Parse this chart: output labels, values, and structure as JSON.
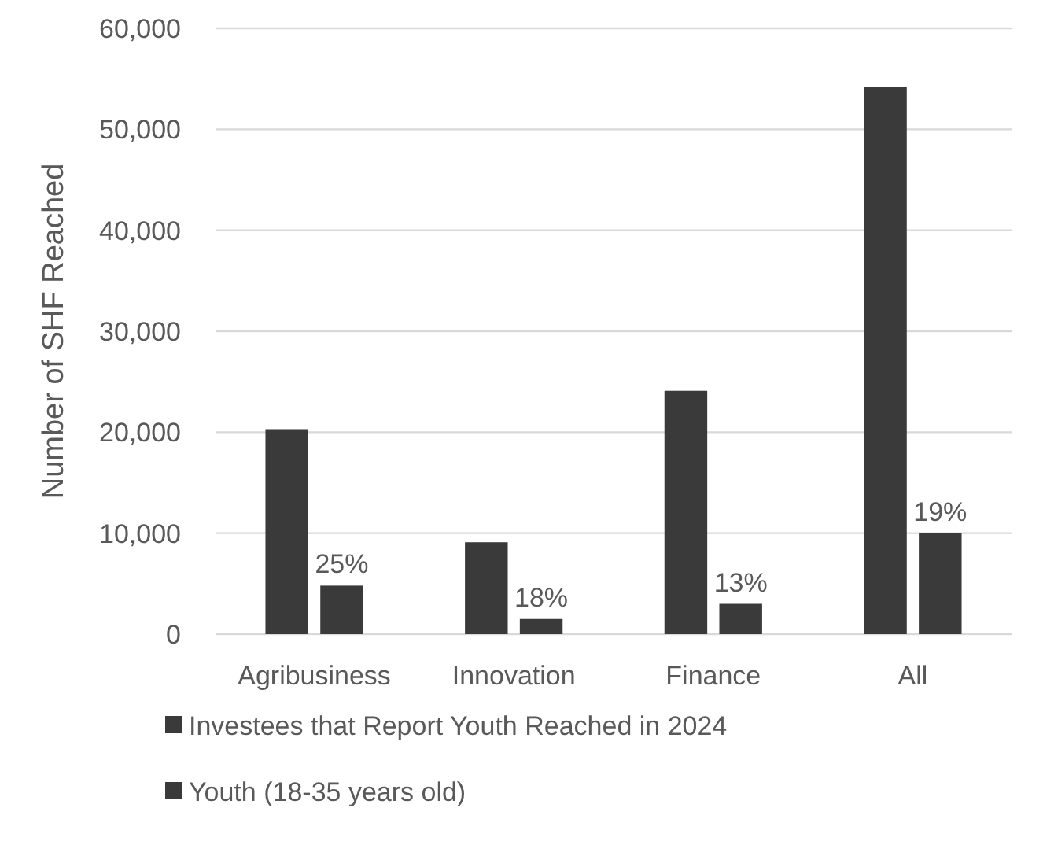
{
  "chart_data": {
    "type": "bar",
    "ylabel": "Number of SHF Reached",
    "categories": [
      "Agribusiness",
      "Innovation",
      "Finance",
      "All"
    ],
    "series": [
      {
        "name": "Investees that Report Youth Reached in 2024",
        "color": "#3a3a3a",
        "values": [
          20300,
          9100,
          24100,
          54200
        ]
      },
      {
        "name": "Youth (18-35 years old)",
        "color": "#3a3a3a",
        "values": [
          4800,
          1500,
          3000,
          10000
        ]
      }
    ],
    "annotations": [
      {
        "text": "25%",
        "x": "Agribusiness",
        "y": 4800
      },
      {
        "text": "18%",
        "x": "Innovation",
        "y": 1500
      },
      {
        "text": "13%",
        "x": "Finance",
        "y": 3000
      },
      {
        "text": "19%",
        "x": "All",
        "y": 10000
      }
    ],
    "ylim": [
      0,
      60000
    ],
    "yticks": [
      {
        "value": 0,
        "label": "0"
      },
      {
        "value": 10000,
        "label": "10,000"
      },
      {
        "value": 20000,
        "label": "20,000"
      },
      {
        "value": 30000,
        "label": "30,000"
      },
      {
        "value": 40000,
        "label": "40,000"
      },
      {
        "value": 50000,
        "label": "50,000"
      },
      {
        "value": 60000,
        "label": "60,000"
      }
    ],
    "grid": "y",
    "legend": "bottom"
  }
}
